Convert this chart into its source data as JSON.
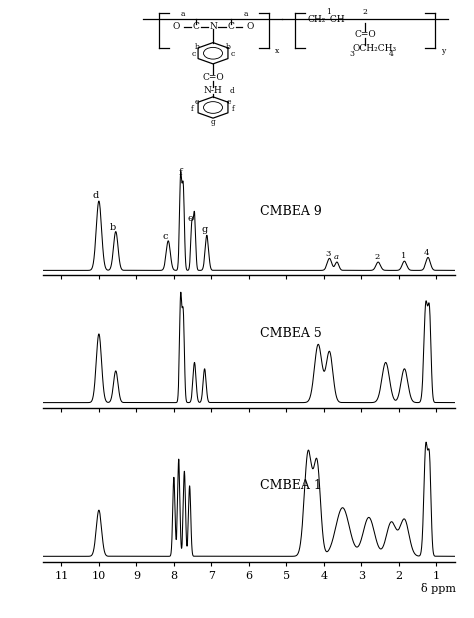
{
  "background_color": "#ffffff",
  "line_color": "#000000",
  "xlim": [
    11.5,
    0.5
  ],
  "tick_positions": [
    11,
    10,
    9,
    8,
    7,
    6,
    5,
    4,
    3,
    2,
    1
  ],
  "tick_labels": [
    "11",
    "10",
    "9",
    "8",
    "7",
    "6",
    "5",
    "4",
    "3",
    "2",
    "1"
  ],
  "label9": "CMBEA 9",
  "label5": "CMBEA 5",
  "label1": "CMBEA 1",
  "xlabel": "δ ppm"
}
